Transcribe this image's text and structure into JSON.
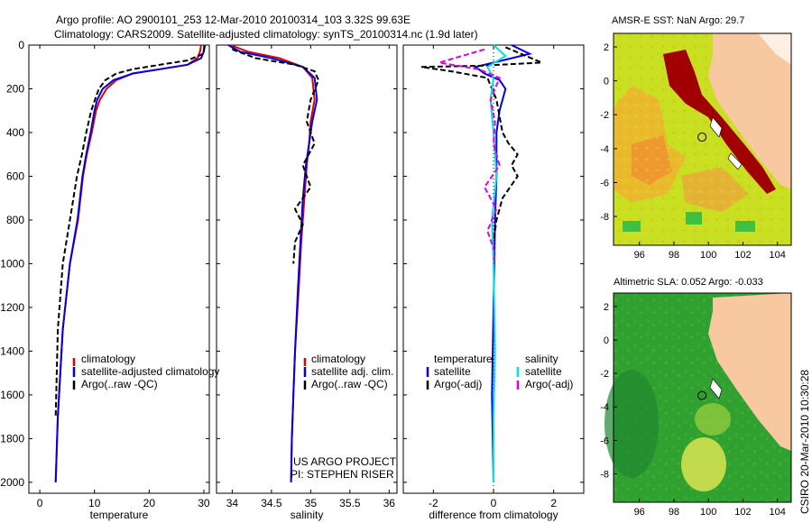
{
  "title_line1": "Argo profile: AO 2900101_253 12-Mar-2010 20100314_103 3.32S 99.63E",
  "title_line2": "Climatology: CARS2009. Satellite-adjusted climatology: synTS_20100314.nc (1.9d later)",
  "colors": {
    "climatology": "#e00000",
    "satellite": "#0000e0",
    "argo": "#000000",
    "sat_sal": "#00e0e0",
    "argo_sal": "#e000e0",
    "land": "#f8c8a0"
  },
  "chart_data": [
    {
      "type": "line",
      "id": "temperature",
      "xlabel": "temperature",
      "ylabel": "",
      "xlim": [
        -2,
        31
      ],
      "ylim": [
        2050,
        0
      ],
      "xticks": [
        "0",
        "10",
        "20",
        "30"
      ],
      "xtick_values": [
        0,
        10,
        20,
        30
      ],
      "yticks": [
        "0",
        "200",
        "400",
        "600",
        "800",
        "1000",
        "1200",
        "1400",
        "1600",
        "1800",
        "2000"
      ],
      "ytick_values": [
        0,
        200,
        400,
        600,
        800,
        1000,
        1200,
        1400,
        1600,
        1800,
        2000
      ],
      "legend": [
        "climatology",
        "satellite-adjusted climatology",
        "Argo(..raw -QC)"
      ],
      "series": [
        {
          "name": "climatology",
          "color": "#e00000",
          "dash": "",
          "x": [
            29.5,
            29.3,
            28.8,
            27,
            22,
            17,
            14,
            12.2,
            11,
            10.3,
            9.5,
            8.6,
            7.9,
            7,
            5.5,
            4.2,
            3.3,
            2.9
          ],
          "y": [
            0,
            30,
            60,
            90,
            110,
            130,
            160,
            200,
            250,
            300,
            400,
            500,
            600,
            800,
            1000,
            1300,
            1700,
            2000
          ]
        },
        {
          "name": "satellite",
          "color": "#0000e0",
          "dash": "",
          "x": [
            30.2,
            30,
            29.5,
            27,
            22,
            17,
            13.5,
            11.5,
            10.5,
            10,
            9.3,
            8.5,
            7.8,
            6.9,
            5.5,
            4.2,
            3.3,
            2.9
          ],
          "y": [
            0,
            30,
            60,
            90,
            110,
            130,
            160,
            200,
            250,
            300,
            400,
            500,
            600,
            800,
            1000,
            1300,
            1700,
            2000
          ]
        },
        {
          "name": "Argo(..raw -QC)",
          "color": "#000000",
          "dash": "6,3",
          "x": [
            30.1,
            29.9,
            27,
            22,
            17,
            14,
            12,
            10.8,
            10.1,
            9.4,
            8.5,
            7.7,
            6.8,
            5.5,
            4.2,
            3.3,
            2.9
          ],
          "y": [
            5,
            40,
            70,
            90,
            110,
            130,
            160,
            200,
            250,
            300,
            400,
            500,
            600,
            800,
            1000,
            1300,
            1700
          ]
        }
      ]
    },
    {
      "type": "line",
      "id": "salinity",
      "xlabel": "salinity",
      "ylabel": "",
      "xlim": [
        33.8,
        36.1
      ],
      "ylim": [
        2050,
        0
      ],
      "xticks": [
        "34",
        "34.5",
        "35",
        "35.5",
        "36"
      ],
      "xtick_values": [
        34,
        34.5,
        35,
        35.5,
        36
      ],
      "legend": [
        "climatology",
        "satellite adj. clim.",
        "Argo(..raw -QC)"
      ],
      "annotation": [
        "US ARGO PROJECT",
        "PI: STEPHEN RISER"
      ],
      "series": [
        {
          "name": "climatology",
          "color": "#e00000",
          "dash": "",
          "x": [
            33.98,
            34.2,
            34.6,
            34.9,
            35.02,
            35.05,
            35.0,
            34.98,
            34.95,
            34.92,
            34.88,
            34.85,
            34.8,
            34.78,
            34.76,
            34.75
          ],
          "y": [
            0,
            30,
            60,
            100,
            150,
            250,
            350,
            450,
            550,
            700,
            900,
            1100,
            1400,
            1600,
            1800,
            2000
          ]
        },
        {
          "name": "satellite",
          "color": "#0000e0",
          "dash": "",
          "x": [
            33.95,
            34.1,
            34.5,
            34.9,
            35.05,
            35.08,
            35.02,
            34.98,
            34.94,
            34.9,
            34.87,
            34.84,
            34.8,
            34.78,
            34.76,
            34.75
          ],
          "y": [
            0,
            30,
            60,
            100,
            150,
            250,
            350,
            450,
            550,
            700,
            900,
            1100,
            1400,
            1600,
            1800,
            2000
          ]
        },
        {
          "name": "Argo(..raw -QC)",
          "color": "#000000",
          "dash": "6,3",
          "x": [
            34.0,
            34.3,
            34.8,
            35.05,
            35.1,
            35.0,
            34.95,
            35.05,
            34.9,
            35.0,
            34.8,
            34.9,
            34.8,
            34.78
          ],
          "y": [
            20,
            60,
            90,
            120,
            160,
            250,
            350,
            450,
            550,
            650,
            750,
            820,
            900,
            1000
          ]
        }
      ]
    },
    {
      "type": "line",
      "id": "difference",
      "xlabel": "difference from climatology",
      "ylabel": "",
      "xlim": [
        -3,
        3
      ],
      "ylim": [
        2050,
        0
      ],
      "xticks": [
        "-2",
        "0",
        "2"
      ],
      "xtick_values": [
        -2,
        0,
        2
      ],
      "legend_left": [
        "temperature",
        "satellite",
        "Argo(-adj)"
      ],
      "legend_right": [
        "salinity",
        "satellite",
        "Argo(-adj)"
      ],
      "series": [
        {
          "name": "temperature satellite",
          "color": "#0000e0",
          "dash": "",
          "x": [
            0.6,
            1.2,
            0.3,
            -0.6,
            -0.3,
            0.2,
            0.4,
            0.3,
            0.2,
            0.1,
            0.1,
            0.05,
            0.0,
            -0.05,
            0.0
          ],
          "y": [
            0,
            40,
            70,
            100,
            130,
            160,
            200,
            250,
            300,
            400,
            600,
            800,
            1200,
            1600,
            2000
          ]
        },
        {
          "name": "temperature Argo",
          "color": "#000000",
          "dash": "6,3",
          "x": [
            0.4,
            1.6,
            -0.5,
            -2.4,
            -1.4,
            -0.2,
            0.1,
            0.3,
            0.5,
            0.8,
            0.6,
            0.8,
            0.3,
            0.1,
            0.0
          ],
          "y": [
            10,
            80,
            95,
            100,
            120,
            150,
            250,
            400,
            450,
            500,
            550,
            600,
            700,
            800,
            900
          ]
        },
        {
          "name": "salinity satellite",
          "color": "#00e0e0",
          "dash": "",
          "x": [
            0.0,
            0.4,
            -0.2,
            0.0,
            -0.1,
            0.0,
            0.1,
            -0.05,
            0.0,
            0.05,
            0.0,
            0.0
          ],
          "y": [
            0,
            50,
            100,
            150,
            250,
            400,
            600,
            800,
            1000,
            1400,
            1700,
            2000
          ]
        },
        {
          "name": "salinity Argo",
          "color": "#e000e0",
          "dash": "6,3",
          "x": [
            -0.3,
            -1.8,
            -0.5,
            0.2,
            -0.1,
            0.05,
            0.0,
            0.2,
            -0.3,
            0.1,
            -0.2,
            0.05,
            0.0
          ],
          "y": [
            20,
            80,
            110,
            150,
            250,
            350,
            450,
            550,
            650,
            750,
            850,
            950,
            1000
          ]
        }
      ]
    },
    {
      "type": "heatmap",
      "id": "sst_map",
      "title": "AMSR-E SST: NaN Argo: 29.7",
      "xticks": [
        "96",
        "98",
        "100",
        "102",
        "104"
      ],
      "xtick_values": [
        96,
        98,
        100,
        102,
        104
      ],
      "yticks": [
        "2",
        "0",
        "-2",
        "-4",
        "-6",
        "-8"
      ],
      "ytick_values": [
        2,
        0,
        -2,
        -4,
        -6,
        -8
      ],
      "xlim": [
        94.5,
        104.8
      ],
      "ylim": [
        -9.7,
        2.8
      ],
      "marker": {
        "lon": 99.63,
        "lat": -3.32
      }
    },
    {
      "type": "heatmap",
      "id": "sla_map",
      "title": "Altimetric SLA: 0.052 Argo: -0.033",
      "xticks": [
        "96",
        "98",
        "100",
        "102",
        "104"
      ],
      "xtick_values": [
        96,
        98,
        100,
        102,
        104
      ],
      "yticks": [
        "2",
        "0",
        "-2",
        "-4",
        "-6",
        "-8"
      ],
      "ytick_values": [
        2,
        0,
        -2,
        -4,
        -6,
        -8
      ],
      "xlim": [
        94.5,
        104.8
      ],
      "ylim": [
        -9.7,
        2.8
      ],
      "marker": {
        "lon": 99.63,
        "lat": -3.32
      }
    }
  ],
  "side_label": "CSIRO 20-Mar-2010 10:30:28"
}
